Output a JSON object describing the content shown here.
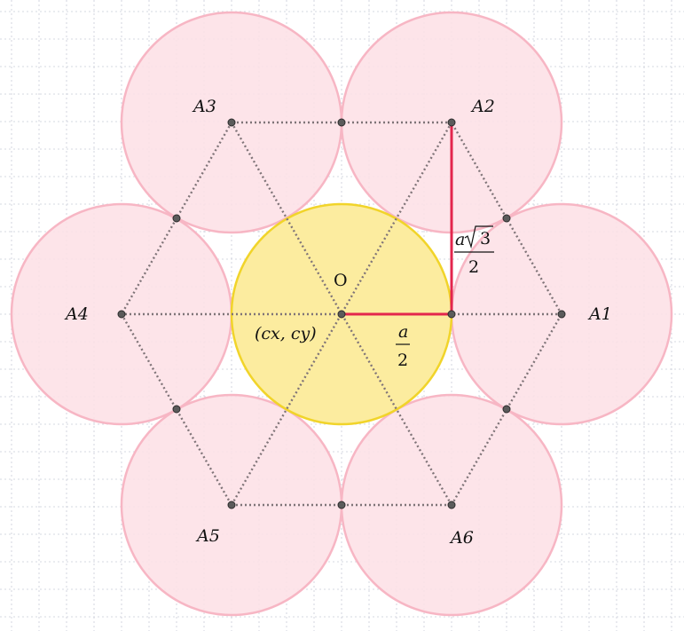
{
  "colors": {
    "grid": "#c9ccd8",
    "outer_circle_fill": "#fde0e6",
    "outer_circle_stroke": "#f7b6c4",
    "center_circle_fill": "#fcec9f",
    "center_circle_stroke": "#f1d42a",
    "dotted_line": "#7f7478",
    "highlight_line": "#e3264d",
    "point_fill": "#5b5b5b",
    "point_stroke": "#2c2c2c"
  },
  "labels": {
    "center": "O",
    "center_coords": "(cx, cy)",
    "vertices": [
      "A1",
      "A2",
      "A3",
      "A4",
      "A5",
      "A6"
    ],
    "half_side": {
      "numerator": "a",
      "denominator": "2"
    },
    "height": {
      "numerator_a": "a",
      "numerator_root": "3",
      "denominator": "2"
    }
  }
}
